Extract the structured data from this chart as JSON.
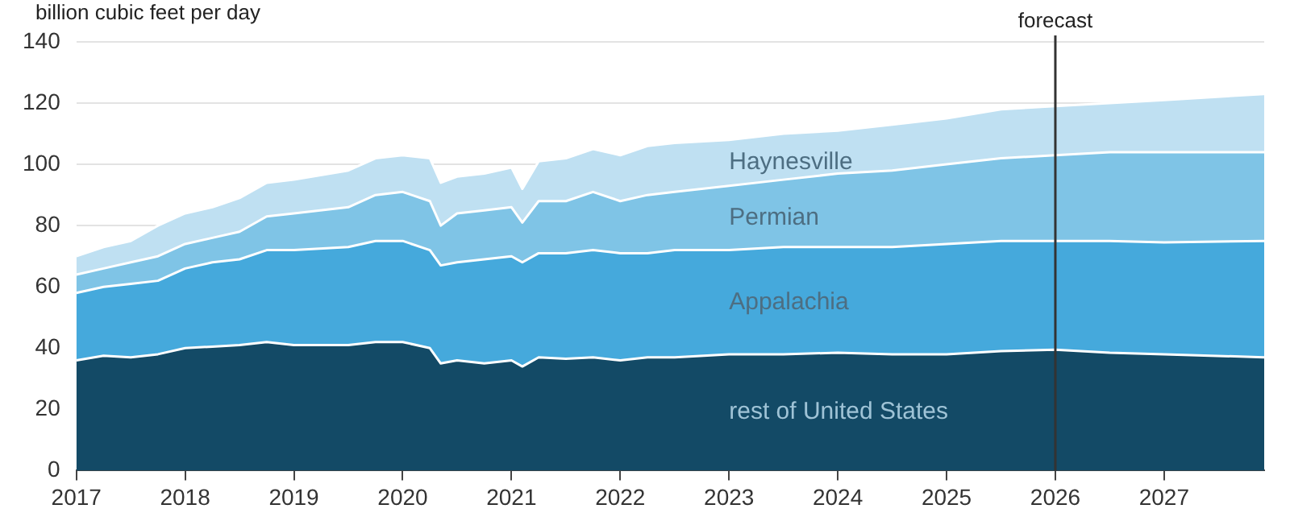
{
  "chart_data": {
    "type": "area",
    "stacked": true,
    "ylabel": "billion cubic feet per day",
    "x": [
      2017,
      2017.25,
      2017.5,
      2017.75,
      2018,
      2018.25,
      2018.5,
      2018.75,
      2019,
      2019.5,
      2019.75,
      2020,
      2020.25,
      2020.35,
      2020.5,
      2020.75,
      2021,
      2021.1,
      2021.25,
      2021.5,
      2021.75,
      2022,
      2022.25,
      2022.5,
      2023,
      2023.5,
      2024,
      2024.5,
      2025,
      2025.5,
      2026,
      2026.5,
      2027,
      2027.92
    ],
    "series": [
      {
        "name": "rest of United States",
        "color": "#134a66",
        "values": [
          36,
          37.5,
          37,
          38,
          40,
          40.5,
          41,
          42,
          41,
          41,
          42,
          42,
          40,
          35,
          36,
          35,
          36,
          34,
          37,
          36.5,
          37,
          36,
          37,
          37,
          38,
          38,
          38.5,
          38,
          38,
          39,
          39.5,
          38.5,
          38,
          37
        ]
      },
      {
        "name": "Appalachia",
        "color": "#45a9dc",
        "values": [
          22,
          22.5,
          24,
          24,
          26,
          27.5,
          28,
          30,
          31,
          32,
          33,
          33,
          32,
          32,
          32,
          34,
          34,
          34,
          34,
          34.5,
          35,
          35,
          34,
          35,
          34,
          35,
          34.5,
          35,
          36,
          36,
          35.5,
          36.5,
          36.5,
          38
        ]
      },
      {
        "name": "Permian",
        "color": "#7fc4e6",
        "values": [
          6,
          6,
          7,
          8,
          8,
          8,
          9,
          11,
          12,
          13,
          15,
          16,
          16,
          13,
          16,
          16,
          16,
          13,
          17,
          17,
          19,
          17,
          19,
          19,
          21,
          22,
          24,
          25,
          26,
          27,
          28,
          29,
          29.5,
          29
        ]
      },
      {
        "name": "Haynesville",
        "color": "#bfe0f2",
        "values": [
          6,
          7,
          7,
          10,
          10,
          10,
          11,
          11,
          11,
          12,
          12,
          12,
          14,
          14,
          12,
          12,
          13,
          11,
          13,
          14,
          14,
          15,
          16,
          16,
          15,
          15,
          14,
          15,
          15,
          16,
          16,
          16,
          17,
          19
        ]
      }
    ],
    "xlim": [
      2017,
      2027.92
    ],
    "xticks": [
      2017,
      2018,
      2019,
      2020,
      2021,
      2022,
      2023,
      2024,
      2025,
      2026,
      2027
    ],
    "ylim": [
      0,
      140
    ],
    "yticks": [
      0,
      20,
      40,
      60,
      80,
      100,
      120,
      140
    ],
    "ref_lines": [
      {
        "axis": "x",
        "value": 2026,
        "label": "forecast",
        "color": "#333333"
      }
    ],
    "grid": "y",
    "legend": false
  }
}
